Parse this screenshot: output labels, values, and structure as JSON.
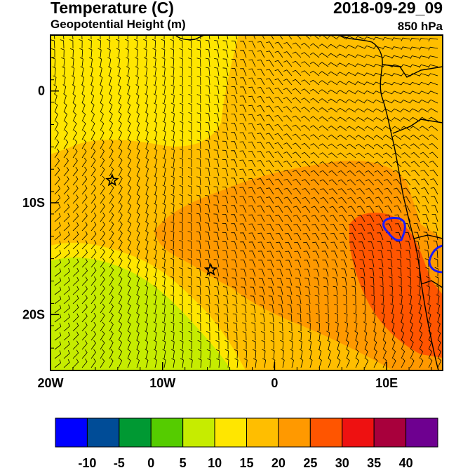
{
  "header": {
    "title": "Temperature (C)",
    "subtitle": "Geopotential Height (m)",
    "datetime": "2018-09-29_09",
    "level": "850 hPa"
  },
  "map": {
    "lon_range": [
      -20,
      15
    ],
    "lat_range": [
      -25,
      5
    ],
    "x_ticks": [
      {
        "value": -20,
        "label": "20W"
      },
      {
        "value": -10,
        "label": "10W"
      },
      {
        "value": 0,
        "label": "0"
      },
      {
        "value": 10,
        "label": "10E"
      }
    ],
    "y_ticks": [
      {
        "value": 0,
        "label": "0"
      },
      {
        "value": -10,
        "label": "10S"
      },
      {
        "value": -20,
        "label": "20S"
      }
    ],
    "markers": [
      {
        "name": "star-marker-1",
        "lon": -14.5,
        "lat": -8
      },
      {
        "name": "star-marker-2",
        "lon": -5.7,
        "lat": -16
      }
    ],
    "wind_barbs": "dense grid of wind barbs over the domain"
  },
  "colorbar": {
    "colors": [
      "#0000ff",
      "#004c97",
      "#009933",
      "#55cc00",
      "#c6ec00",
      "#ffe600",
      "#ffbe00",
      "#ff9900",
      "#ff5500",
      "#ee1111",
      "#a8003c",
      "#6e0090"
    ],
    "labels": [
      "-10",
      "-5",
      "0",
      "5",
      "10",
      "15",
      "20",
      "25",
      "30",
      "35",
      "40"
    ]
  }
}
